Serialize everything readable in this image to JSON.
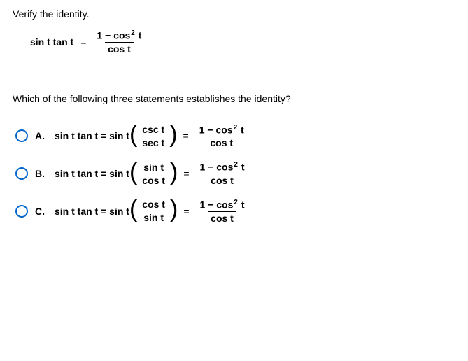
{
  "instruction": "Verify the identity.",
  "identity": {
    "lhs": "sin t tan t",
    "eq": "=",
    "rhs_num_a": "1 − cos",
    "rhs_num_exp": "2",
    "rhs_num_b": " t",
    "rhs_den": "cos t"
  },
  "question": "Which of the following three statements establishes the identity?",
  "choices": [
    {
      "letter": "A.",
      "step_lhs": "sin t tan t = sin t",
      "inner_num": "csc t",
      "inner_den": "sec t",
      "eq": "=",
      "rhs_num_a": "1 − cos",
      "rhs_num_exp": "2",
      "rhs_num_b": " t",
      "rhs_den": "cos t"
    },
    {
      "letter": "B.",
      "step_lhs": "sin t tan t = sin t",
      "inner_num": "sin t",
      "inner_den": "cos t",
      "eq": "=",
      "rhs_num_a": "1 − cos",
      "rhs_num_exp": "2",
      "rhs_num_b": " t",
      "rhs_den": "cos t"
    },
    {
      "letter": "C.",
      "step_lhs": "sin t tan t = sin t",
      "inner_num": "cos t",
      "inner_den": "sin t",
      "eq": "=",
      "rhs_num_a": "1 − cos",
      "rhs_num_exp": "2",
      "rhs_num_b": " t",
      "rhs_den": "cos t"
    }
  ],
  "colors": {
    "radio_border": "#0066cc",
    "text": "#000000",
    "divider": "#999999",
    "background": "#ffffff"
  }
}
